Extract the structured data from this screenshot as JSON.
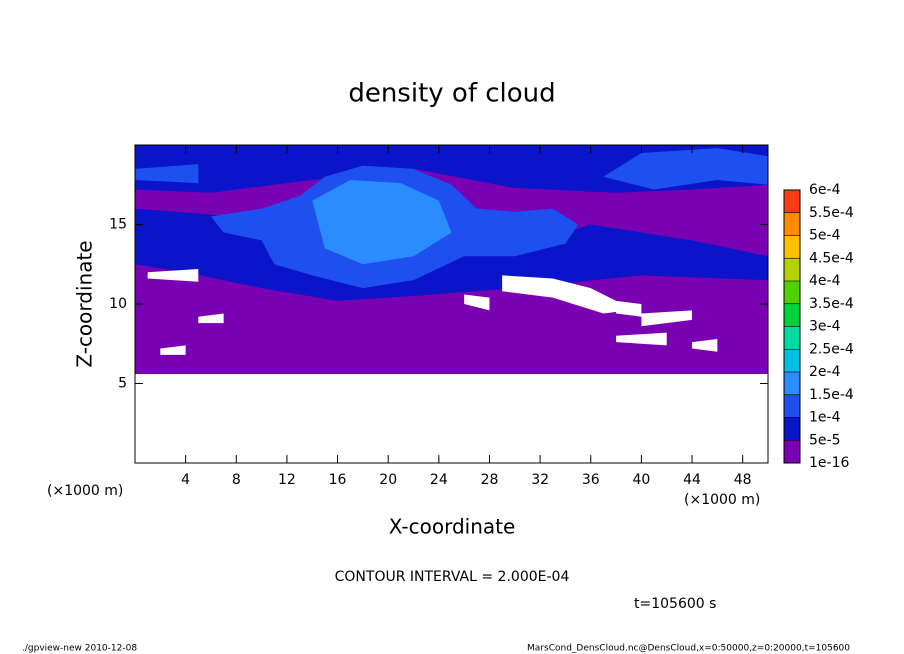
{
  "chart_data": {
    "type": "contour",
    "title": "density of cloud",
    "x_label": "X-coordinate",
    "y_label": "Z-coordinate",
    "x_unit": "(×1000 m)",
    "y_unit": "(×1000 m)",
    "xlim": [
      0,
      50
    ],
    "xticks": [
      4,
      8,
      12,
      16,
      20,
      24,
      28,
      32,
      36,
      40,
      44,
      48
    ],
    "ylim": [
      0,
      20
    ],
    "yticks": [
      5,
      10,
      15
    ],
    "colorbar": {
      "levels": [
        {
          "value": 1e-16,
          "label": "1e-16"
        },
        {
          "value": 5e-05,
          "label": "5e-5"
        },
        {
          "value": 0.0001,
          "label": "1e-4"
        },
        {
          "value": 0.00015,
          "label": "1.5e-4"
        },
        {
          "value": 0.0002,
          "label": "2e-4"
        },
        {
          "value": 0.00025,
          "label": "2.5e-4"
        },
        {
          "value": 0.0003,
          "label": "3e-4"
        },
        {
          "value": 0.00035,
          "label": "3.5e-4"
        },
        {
          "value": 0.0004,
          "label": "4e-4"
        },
        {
          "value": 0.00045,
          "label": "4.5e-4"
        },
        {
          "value": 0.0005,
          "label": "5e-4"
        },
        {
          "value": 0.00055,
          "label": "5.5e-4"
        },
        {
          "value": 0.0006,
          "label": "6e-4"
        }
      ],
      "colors": [
        "#7a00b4",
        "#0a14c8",
        "#1e50f0",
        "#2a8cff",
        "#00c0e6",
        "#00dca0",
        "#00d23c",
        "#50d200",
        "#b4d200",
        "#ffc000",
        "#ff8c00",
        "#ff3c14",
        "#ff8c8c"
      ]
    },
    "contour_interval": "CONTOUR INTERVAL = 2.000E-04",
    "time_label": "t=105600 s",
    "footer_left": "./gpview-new  2010-12-08",
    "footer_right": "MarsCond_DensCloud.nc@DensCloud,x=0:50000,z=0:20000,t=105600"
  }
}
